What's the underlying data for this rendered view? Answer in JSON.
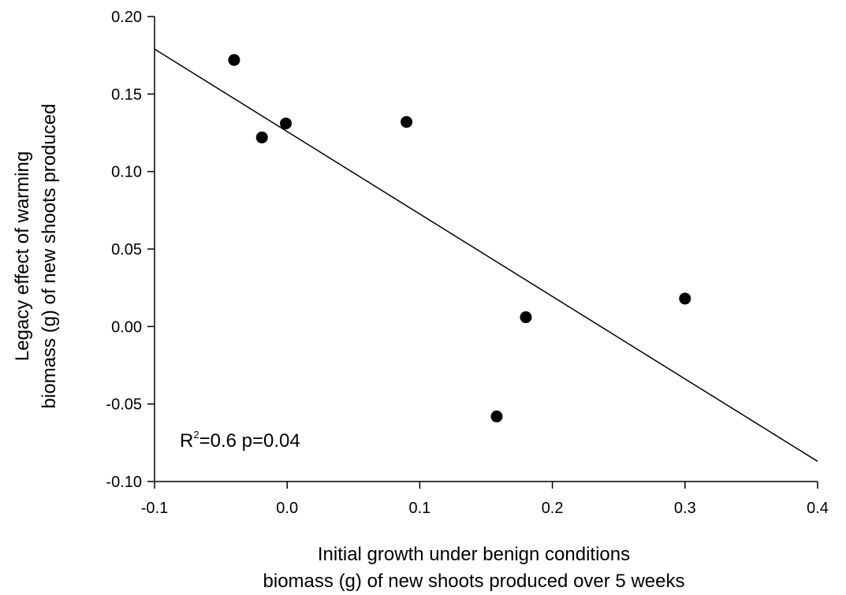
{
  "chart_data": {
    "type": "scatter",
    "xlabel": [
      "Initial growth under benign conditions",
      "biomass (g) of new shoots produced over 5 weeks"
    ],
    "ylabel": [
      "Legacy effect of warming",
      "biomass (g) of new shoots produced"
    ],
    "xlim": [
      -0.1,
      0.4
    ],
    "ylim": [
      -0.1,
      0.2
    ],
    "x_ticks": [
      "-0.1",
      "0.0",
      "0.1",
      "0.2",
      "0.3",
      "0.4"
    ],
    "y_ticks": [
      "0.20",
      "0.15",
      "0.10",
      "0.05",
      "0.00",
      "-0.05",
      "-0.10"
    ],
    "points": [
      {
        "x": -0.04,
        "y": 0.172
      },
      {
        "x": -0.019,
        "y": 0.122
      },
      {
        "x": -0.001,
        "y": 0.131
      },
      {
        "x": 0.09,
        "y": 0.132
      },
      {
        "x": 0.18,
        "y": 0.006
      },
      {
        "x": 0.158,
        "y": -0.058
      },
      {
        "x": 0.3,
        "y": 0.018
      }
    ],
    "regression": {
      "x": [
        -0.1,
        0.4
      ],
      "y": [
        0.179,
        -0.087
      ]
    },
    "annotation": {
      "r_label": "R",
      "r_sup": "2",
      "text": "=0.6 p=0.04"
    },
    "grid": false,
    "legend": "none",
    "marker_color": "#000000"
  }
}
